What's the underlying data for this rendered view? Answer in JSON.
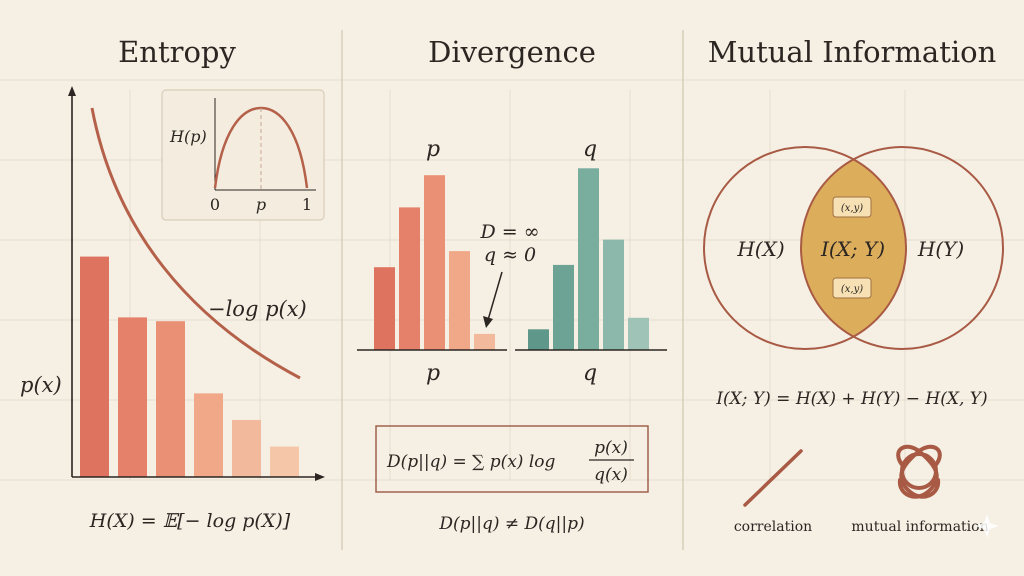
{
  "panels": {
    "entropy": {
      "title": "Entropy",
      "inset_ylabel": "H(p)",
      "inset_ticks": [
        "0",
        "p",
        "1"
      ],
      "curve_label": "−log p(x)",
      "y_label": "p(x)",
      "formula": "H(X) = 𝔼[− log p(X)]",
      "bars": [
        0.58,
        0.42,
        0.41,
        0.22,
        0.15,
        0.08
      ]
    },
    "divergence": {
      "title": "Divergence",
      "p_label": "p",
      "q_label": "q",
      "annotation_line1": "D = ∞",
      "annotation_line2": "q ≈ 0",
      "p_axis": "p",
      "q_axis": "q",
      "formula_lhs": "D(p||q) = ∑ p(x) log",
      "formula_num": "p(x)",
      "formula_den": "q(x)",
      "asymmetry": "D(p||q) ≠ D(q||p)",
      "p_bars": [
        0.36,
        0.62,
        0.76,
        0.43,
        0.07
      ],
      "q_bars": [
        0.09,
        0.37,
        0.79,
        0.48,
        0.14
      ]
    },
    "mutual": {
      "title": "Mutual Information",
      "hx": "H(X)",
      "ixy": "I(X; Y)",
      "hy": "H(Y)",
      "pair_top": "(x,y)",
      "pair_bottom": "(x,y)",
      "formula": "I(X; Y) = H(X) + H(Y) − H(X, Y)",
      "correlation_label": "correlation",
      "mi_label": "mutual information"
    }
  },
  "colors": {
    "background": "#f5efe4",
    "curve": "#b5614a",
    "divider": "#d9cdb9",
    "p_bars": [
      "#de735f",
      "#e5806a",
      "#ea9075",
      "#f0a888",
      "#f3b99c",
      "#f6c6a8"
    ],
    "q_bars": [
      "#5f978a",
      "#6da394",
      "#79ad9e",
      "#8bb8aa",
      "#9fc4b7"
    ],
    "overlap_fill": "#dcae5c"
  }
}
